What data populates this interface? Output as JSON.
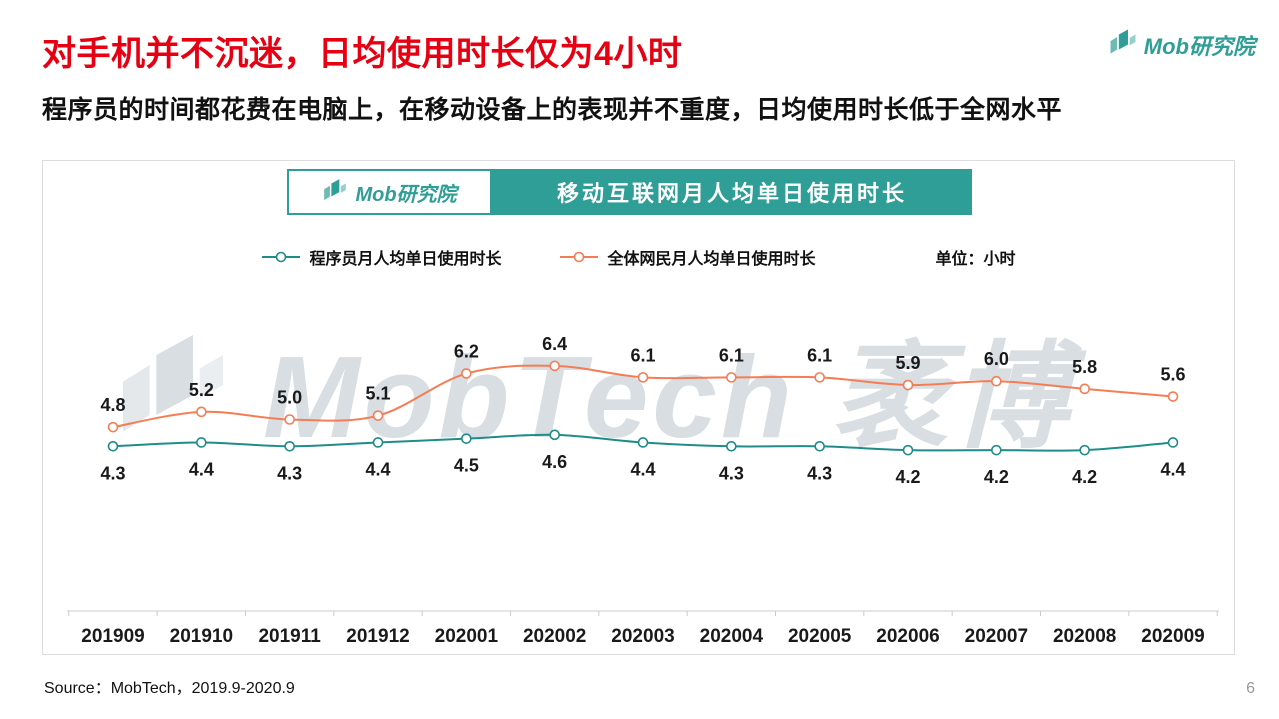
{
  "brand": {
    "logo_text": "Mob研究院"
  },
  "header": {
    "title": "对手机并不沉迷，日均使用时长仅为4小时",
    "subtitle": "程序员的时间都花费在电脑上，在移动设备上的表现并不重度，日均使用时长低于全网水平"
  },
  "watermark": {
    "text_en": "MobTech",
    "text_cn": "袤博"
  },
  "footer": {
    "source": "Source：MobTech，2019.9-2020.9",
    "page_number": "6"
  },
  "colors": {
    "title_red": "#E60012",
    "brand_teal": "#2E9E96",
    "series_teal": "#1F8C8A",
    "series_orange": "#F57D55"
  },
  "chart_data": {
    "type": "line",
    "title": "移动互联网月人均单日使用时长",
    "unit": "单位：小时",
    "categories": [
      "201909",
      "201910",
      "201911",
      "201912",
      "202001",
      "202002",
      "202003",
      "202004",
      "202005",
      "202006",
      "202007",
      "202008",
      "202009"
    ],
    "series": [
      {
        "name": "程序员月人均单日使用时长",
        "color": "#1F8C8A",
        "label_position": "below",
        "values": [
          4.3,
          4.4,
          4.3,
          4.4,
          4.5,
          4.6,
          4.4,
          4.3,
          4.3,
          4.2,
          4.2,
          4.2,
          4.4
        ]
      },
      {
        "name": "全体网民月人均单日使用时长",
        "color": "#F57D55",
        "label_position": "above",
        "values": [
          4.8,
          5.2,
          5.0,
          5.1,
          6.2,
          6.4,
          6.1,
          6.1,
          6.1,
          5.9,
          6.0,
          5.8,
          5.6
        ]
      }
    ],
    "ylim": [
      0,
      7
    ],
    "grid": false,
    "legend_position": "top"
  }
}
